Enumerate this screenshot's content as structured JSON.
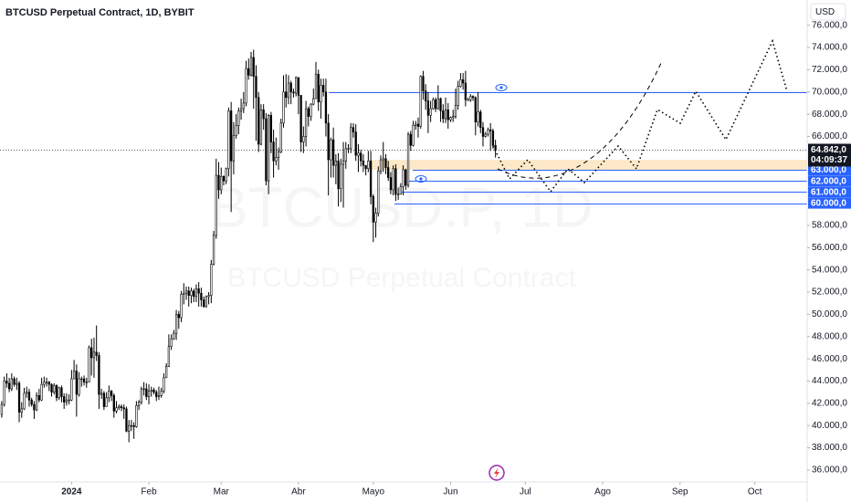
{
  "chart_data": {
    "type": "candlestick",
    "title": "BTCUSD Perpetual Contract, 1D, BYBIT",
    "watermark": "BTCUSD.P, 1D",
    "watermark_subtitle": "BTCUSD Perpetual Contract",
    "currency": "USD",
    "up_color": "#ffffff",
    "down_color": "#000000",
    "outline_color": "#000000",
    "xlim": [
      -0.7,
      323
    ],
    "xticks": [
      {
        "value": 28,
        "label": "2024"
      },
      {
        "value": 59,
        "label": "Feb"
      },
      {
        "value": 88,
        "label": "Mar"
      },
      {
        "value": 119,
        "label": "Abr"
      },
      {
        "value": 149,
        "label": "Mayo"
      },
      {
        "value": 180,
        "label": "Jun"
      },
      {
        "value": 210,
        "label": "Jul"
      },
      {
        "value": 241,
        "label": "Ago"
      },
      {
        "value": 272,
        "label": "Sep"
      },
      {
        "value": 302,
        "label": "Oct"
      }
    ],
    "ylim": [
      34930,
      78270
    ],
    "yticks": [
      {
        "value": 36000,
        "label": "36.000,0"
      },
      {
        "value": 38000,
        "label": "38.000,0"
      },
      {
        "value": 40000,
        "label": "40.000,0"
      },
      {
        "value": 42000,
        "label": "42.000,0"
      },
      {
        "value": 44000,
        "label": "44.000,0"
      },
      {
        "value": 46000,
        "label": "46.000,0"
      },
      {
        "value": 48000,
        "label": "48.000,0"
      },
      {
        "value": 50000,
        "label": "50.000,0"
      },
      {
        "value": 52000,
        "label": "52.000,0"
      },
      {
        "value": 54000,
        "label": "54.000,0"
      },
      {
        "value": 56000,
        "label": "56.000,0"
      },
      {
        "value": 58000,
        "label": "58.000,0"
      },
      {
        "value": 66000,
        "label": "66.000,0"
      },
      {
        "value": 68000,
        "label": "68.000,0"
      },
      {
        "value": 70000,
        "label": "70.000,0"
      },
      {
        "value": 72000,
        "label": "72.000,0"
      },
      {
        "value": 74000,
        "label": "74.000,0"
      },
      {
        "value": 76000,
        "label": "76.000,0"
      }
    ],
    "horizontal_lines": [
      70000,
      63000,
      62000,
      61000,
      60000
    ],
    "line_color": "#2962ff",
    "zone": [
      63000,
      63900
    ],
    "zone_color": "#fde9c8",
    "price_labels": [
      {
        "value": 63000,
        "label": "63.000,0"
      },
      {
        "value": 62000,
        "label": "62.000,0"
      },
      {
        "value": 61000,
        "label": "61.000,0"
      },
      {
        "value": 60000,
        "label": "60.000,0"
      }
    ],
    "last_price": {
      "value": 64842,
      "label": "64.842,0"
    },
    "countdown": "04:09:37",
    "open": [
      41000,
      41900,
      44000,
      43800,
      43300,
      44200,
      43700,
      43800,
      41200,
      41500,
      42900,
      43000,
      42300,
      41900,
      41400,
      42700,
      42300,
      43700,
      43900,
      43900,
      43700,
      43000,
      43600,
      42500,
      43400,
      42600,
      42100,
      42300,
      42300,
      44200,
      44900,
      42800,
      44200,
      44200,
      43900,
      43900,
      47000,
      46100,
      46600,
      46300,
      42800,
      42900,
      41700,
      42500,
      43100,
      42700,
      41300,
      41600,
      41700,
      41600,
      41500,
      39500,
      40000,
      40000,
      39900,
      41800,
      42100,
      43300,
      43300,
      42600,
      43100,
      43200,
      43000,
      42600,
      42700,
      43100,
      44300,
      45300,
      47100,
      47800,
      48300,
      50000,
      49700,
      51800,
      51900,
      52100,
      51700,
      52100,
      51600,
      52300,
      51900,
      51300,
      50700,
      51600,
      51700,
      54500,
      57100,
      62500,
      61200,
      62400,
      62000,
      63100,
      68300,
      63800,
      66100,
      67000,
      68300,
      68500,
      69000,
      72100,
      71500,
      73100,
      71400,
      69500,
      65300,
      68400,
      67600,
      62000,
      67900,
      65500,
      63800,
      64100,
      64600,
      67200,
      70000,
      69500,
      70800,
      70000,
      69900,
      71300,
      69700,
      65500,
      66000,
      68500,
      67800,
      68900,
      69400,
      71600,
      69100,
      70600,
      70000,
      67200,
      63900,
      65700,
      63400,
      63800,
      61300,
      63500,
      63800,
      64900,
      64900,
      66800,
      66400,
      64300,
      64500,
      63800,
      63400,
      63100,
      63800,
      60600,
      58300,
      59100,
      62900,
      63900,
      64000,
      63200,
      62300,
      61200,
      63100,
      60800,
      60800,
      61500,
      63000,
      61600,
      66200,
      65200,
      67000,
      67100,
      66900,
      71400,
      70100,
      69200,
      67900,
      68500,
      69300,
      68500,
      69400,
      68300,
      67600,
      68400,
      67500,
      67700,
      67800,
      68800,
      70500,
      71100,
      70800,
      69300,
      69300,
      69600,
      69500,
      67300,
      68200,
      66800,
      66000,
      66200,
      66600,
      66500,
      65200
    ],
    "high": [
      42200,
      44400,
      44700,
      44300,
      44700,
      44400,
      44300,
      44000,
      42100,
      43400,
      43500,
      43300,
      42500,
      42200,
      43000,
      43300,
      44300,
      44400,
      44300,
      44000,
      43800,
      43800,
      43700,
      43500,
      43600,
      42900,
      42900,
      42800,
      45000,
      45900,
      45500,
      44800,
      44400,
      44500,
      44300,
      47200,
      47800,
      47900,
      49000,
      46600,
      43300,
      43100,
      43000,
      43600,
      43200,
      42900,
      42200,
      41900,
      41900,
      41900,
      41700,
      40500,
      40500,
      40300,
      42200,
      42300,
      43500,
      43900,
      43800,
      43700,
      43500,
      43400,
      43200,
      43500,
      43400,
      44700,
      45600,
      48200,
      48200,
      48600,
      50400,
      50300,
      52100,
      52800,
      52500,
      52500,
      52400,
      52300,
      52700,
      52900,
      52400,
      51600,
      51700,
      52000,
      54900,
      57500,
      64000,
      63700,
      63200,
      62500,
      63200,
      68600,
      69100,
      67300,
      68000,
      68600,
      69400,
      70000,
      72800,
      73000,
      73600,
      73800,
      72400,
      70000,
      68900,
      68900,
      68100,
      68000,
      68200,
      66600,
      65900,
      65000,
      67600,
      71500,
      71600,
      71500,
      71000,
      70300,
      71400,
      71300,
      69700,
      66900,
      69200,
      68700,
      69000,
      70300,
      72700,
      72000,
      71200,
      71200,
      71200,
      68000,
      65900,
      66800,
      64400,
      64500,
      64000,
      65500,
      65500,
      65300,
      67200,
      67200,
      67100,
      65300,
      64800,
      64400,
      63400,
      64700,
      64700,
      60800,
      59600,
      63300,
      64300,
      65500,
      64400,
      63800,
      62800,
      63400,
      63500,
      61400,
      61800,
      63400,
      63100,
      66400,
      66500,
      67400,
      67400,
      67700,
      71500,
      71900,
      70700,
      70000,
      69200,
      69500,
      69500,
      70600,
      69500,
      68900,
      69500,
      69000,
      67800,
      68400,
      70300,
      71000,
      71700,
      71700,
      71900,
      69500,
      69800,
      69700,
      69600,
      70000,
      68400,
      67300,
      66400,
      66800,
      67200,
      66700,
      65700
    ],
    "low": [
      40700,
      41700,
      43400,
      43000,
      43100,
      43500,
      43200,
      40300,
      40700,
      41400,
      42500,
      41700,
      41700,
      40600,
      41300,
      42100,
      42200,
      43400,
      43500,
      43100,
      42600,
      42800,
      42200,
      42300,
      42100,
      41500,
      41800,
      41900,
      42200,
      44200,
      40800,
      42600,
      43500,
      43600,
      43400,
      43900,
      44500,
      44300,
      45800,
      41500,
      42400,
      41400,
      41700,
      42100,
      42200,
      40700,
      41100,
      41400,
      41300,
      40600,
      39400,
      38500,
      39500,
      38800,
      39800,
      41400,
      41900,
      42700,
      42300,
      41900,
      42600,
      42800,
      42200,
      42300,
      42500,
      42900,
      44300,
      45300,
      46800,
      47700,
      47700,
      48700,
      49300,
      50900,
      51300,
      50700,
      51000,
      51100,
      51100,
      50700,
      50700,
      50600,
      50600,
      50900,
      51000,
      54400,
      56800,
      60400,
      60800,
      61600,
      61700,
      62400,
      59200,
      62600,
      65800,
      66200,
      67500,
      68100,
      68700,
      71100,
      71400,
      68500,
      65600,
      64600,
      65200,
      66600,
      61600,
      60800,
      64500,
      62300,
      63400,
      63000,
      64500,
      66800,
      68600,
      68900,
      68900,
      69500,
      69600,
      68000,
      64600,
      64500,
      65100,
      66900,
      67400,
      68800,
      69400,
      68300,
      67600,
      69600,
      66000,
      60700,
      62300,
      62300,
      61700,
      59700,
      60100,
      59600,
      63100,
      64500,
      64500,
      65900,
      63800,
      62800,
      63300,
      62800,
      62500,
      62800,
      59900,
      56500,
      56900,
      58800,
      62600,
      62800,
      62600,
      62000,
      60800,
      60700,
      60200,
      60300,
      60800,
      60700,
      61200,
      61400,
      64700,
      65100,
      66600,
      65900,
      66700,
      69300,
      68400,
      66300,
      67300,
      68400,
      68200,
      68400,
      67300,
      67200,
      67200,
      66700,
      67300,
      67300,
      67600,
      68400,
      70400,
      70200,
      68700,
      69200,
      69100,
      69200,
      66100,
      66900,
      66300,
      65100,
      65900,
      66000,
      64700,
      64900,
      64100
    ],
    "close": [
      41900,
      44000,
      43800,
      43300,
      44200,
      43700,
      43800,
      41200,
      41500,
      42900,
      43000,
      42300,
      41900,
      41400,
      42700,
      42300,
      43700,
      43900,
      43900,
      43700,
      43000,
      43600,
      42500,
      43400,
      42600,
      42100,
      42300,
      42300,
      44200,
      44900,
      42800,
      44200,
      44200,
      43900,
      43900,
      47000,
      46100,
      46600,
      46300,
      42800,
      42900,
      41700,
      42500,
      43100,
      42700,
      41300,
      41600,
      41700,
      41600,
      41500,
      39500,
      40000,
      40000,
      39900,
      41800,
      42100,
      43300,
      43300,
      42600,
      43100,
      43200,
      43000,
      42600,
      42700,
      43100,
      44300,
      45300,
      47100,
      47800,
      48300,
      50000,
      49700,
      51800,
      51900,
      52100,
      51700,
      52100,
      51600,
      52300,
      51900,
      51300,
      50700,
      51600,
      51700,
      54500,
      57100,
      62500,
      61200,
      62400,
      62000,
      63100,
      68300,
      63800,
      66100,
      67000,
      68300,
      68500,
      69000,
      72100,
      71500,
      73100,
      71400,
      69500,
      65300,
      68400,
      67600,
      62000,
      67900,
      65500,
      63800,
      64100,
      64600,
      67200,
      70000,
      69500,
      70800,
      70000,
      69900,
      71300,
      69700,
      65500,
      66000,
      68500,
      67800,
      68900,
      69400,
      71600,
      69100,
      70600,
      70000,
      67200,
      63900,
      65700,
      63400,
      63800,
      61300,
      63500,
      63800,
      64900,
      64900,
      66800,
      66400,
      64300,
      64500,
      63800,
      63400,
      63100,
      63800,
      60600,
      58300,
      59100,
      62900,
      63900,
      64000,
      63200,
      62300,
      61200,
      63100,
      60800,
      60800,
      61500,
      63000,
      61600,
      66200,
      65200,
      67000,
      67100,
      66900,
      71400,
      70100,
      69200,
      67900,
      68500,
      69300,
      68500,
      69400,
      68300,
      67600,
      68400,
      67500,
      67700,
      67800,
      68800,
      70500,
      71100,
      70800,
      69300,
      69300,
      69600,
      69500,
      67300,
      68200,
      66800,
      66000,
      66200,
      66600,
      66500,
      65200,
      64842
    ]
  }
}
